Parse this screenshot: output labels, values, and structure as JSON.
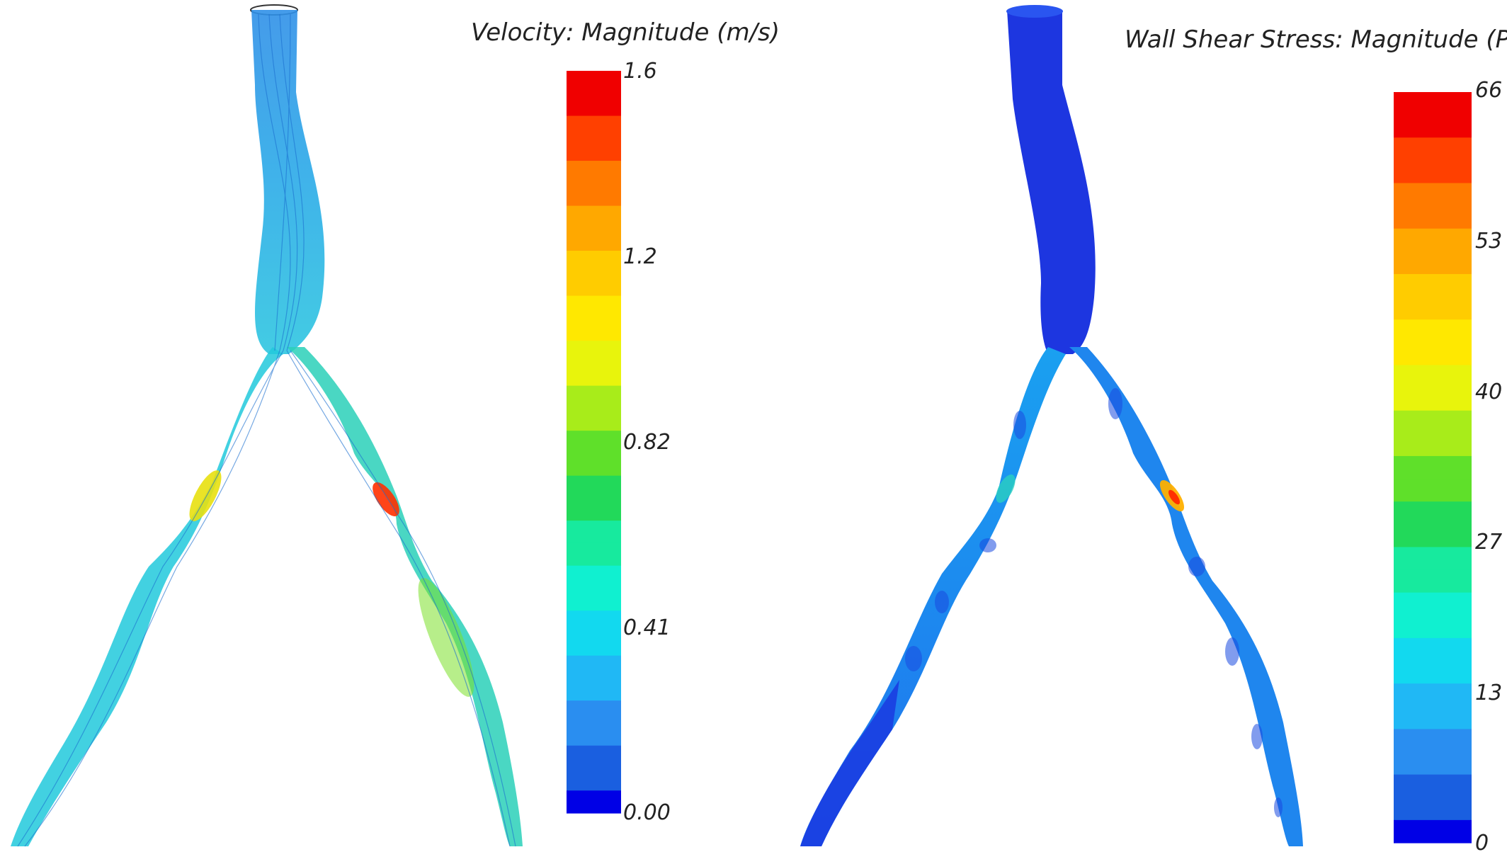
{
  "panels": [
    {
      "title": "Velocity: Magnitude (m/s)",
      "ticks": [
        "1.6",
        "1.2",
        "0.82",
        "0.41",
        "0.00"
      ]
    },
    {
      "title": "Wall Shear Stress: Magnitude (Pa)",
      "ticks": [
        "66",
        "53",
        "40",
        "27",
        "13",
        "0"
      ]
    }
  ],
  "colors": {
    "scale": [
      "#0000e6",
      "#1a5fe0",
      "#2a8ef0",
      "#20b8f5",
      "#12d9ef",
      "#10f0d0",
      "#17ea9e",
      "#22d95a",
      "#5fe02a",
      "#a8ec1a",
      "#e8f40c",
      "#ffe800",
      "#ffcc00",
      "#ffa800",
      "#ff7a00",
      "#ff4000",
      "#f00000"
    ],
    "streamline_base": "#2e8be6",
    "vessel_body": "#1d36e0",
    "vessel_branch": "#1f6ff0"
  }
}
